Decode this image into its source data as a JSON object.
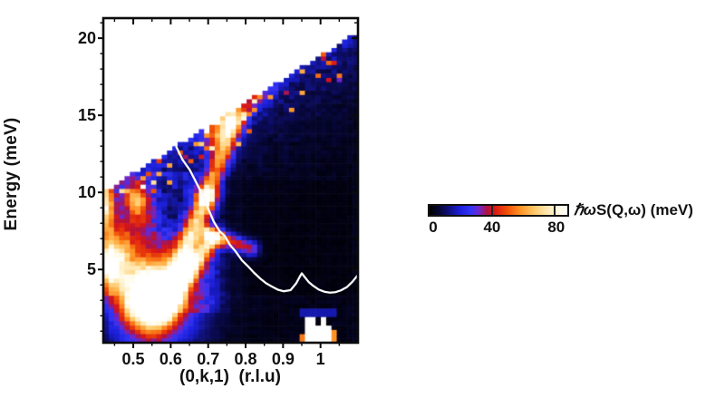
{
  "figure": {
    "background": "#ffffff"
  },
  "chart_data": {
    "type": "heatmap",
    "title": "",
    "xlabel": "(0,k,1)  (r.l.u)",
    "ylabel": "Energy (meV)",
    "xlim": [
      0.42,
      1.1
    ],
    "ylim": [
      0.25,
      21.3
    ],
    "x_axis": {
      "major_values": [
        0.5,
        0.6,
        0.7,
        0.8,
        0.9,
        1.0
      ],
      "major_labels": [
        "0.5",
        "0.6",
        "0.7",
        "0.8",
        "0.9",
        "1"
      ],
      "minor_step": 0.05
    },
    "y_axis": {
      "major_values": [
        5,
        10,
        15,
        20
      ],
      "major_labels": [
        "5",
        "10",
        "15",
        "20"
      ],
      "minor_step": 1
    },
    "grid": {
      "nk": 48,
      "ne": 76,
      "noise_seed": 12345
    },
    "kinematic_boundary": {
      "k0": 0.42,
      "E0": 10.0,
      "slope_meV_per_k": 15.3
    },
    "aspect_k_per_meV": 0.0415,
    "colormap_stops": [
      [
        0.0,
        "#000002"
      ],
      [
        0.06,
        "#05052a"
      ],
      [
        0.13,
        "#0e0e70"
      ],
      [
        0.22,
        "#1b1fd8"
      ],
      [
        0.3,
        "#3333f5"
      ],
      [
        0.36,
        "#7026c8"
      ],
      [
        0.42,
        "#b0123e"
      ],
      [
        0.47,
        "#d91616"
      ],
      [
        0.56,
        "#ef4d05"
      ],
      [
        0.66,
        "#ff9426"
      ],
      [
        0.76,
        "#ffc869"
      ],
      [
        0.86,
        "#ffe9b4"
      ],
      [
        0.95,
        "#fffbe8"
      ],
      [
        1.0,
        "#ffffff"
      ]
    ],
    "colorbar": {
      "min": 0,
      "max": 88,
      "tick_values": [
        0,
        40,
        80
      ],
      "tick_labels": [
        "0",
        "40",
        "80"
      ],
      "label_prefix": "ℏω",
      "label_main": "S(Q,ω)",
      "label_units": " (meV)"
    },
    "base_model": {
      "left_blue_value": 11,
      "left_dark_bottom": 5,
      "mid_right_fade_start": 0.7,
      "right_value": 3.0,
      "pocket": {
        "k1": 0.79,
        "k2": 1.09,
        "E1": 3.2,
        "E2": 10.8,
        "value": 1.8
      },
      "bottom_dark": {
        "k1": 0.57,
        "k2": 0.92,
        "Emax": 2.2,
        "value": 2.5
      },
      "boundary_band_amp": 14,
      "boundary_band_decay_meV": 2.6,
      "speckle_depth_meV": 2.4,
      "speckle_prob": 0.12,
      "speckle_amp": 22
    },
    "gaussian_features": [
      {
        "k": 0.545,
        "E": 3.1,
        "sk": 0.048,
        "sE": 1.35,
        "amp": 95
      },
      {
        "k": 0.565,
        "E": 3.6,
        "sk": 0.09,
        "sE": 2.6,
        "amp": 40
      },
      {
        "k": 0.46,
        "E": 5.9,
        "sk": 0.028,
        "sE": 1.25,
        "amp": 44
      },
      {
        "k": 0.437,
        "E": 4.7,
        "sk": 0.02,
        "sE": 0.95,
        "amp": 34
      },
      {
        "k": 0.425,
        "E": 9.6,
        "sk": 0.016,
        "sE": 1.0,
        "amp": 48
      },
      {
        "k": 0.51,
        "E": 9.6,
        "sk": 0.022,
        "sE": 0.7,
        "amp": 38
      },
      {
        "k": 0.73,
        "E": 14.2,
        "sk": 0.032,
        "sE": 1.2,
        "amp": 38
      },
      {
        "k": 0.52,
        "E": 8.4,
        "sk": 0.035,
        "sE": 1.1,
        "amp": 18
      },
      {
        "k": 0.585,
        "E": 8.6,
        "sk": 0.035,
        "sE": 1.3,
        "amp": -8
      }
    ],
    "branch_segments": [
      {
        "k1": 0.578,
        "E1": 2.4,
        "k2": 0.695,
        "E2": 9.7,
        "sigma": 0.019,
        "amp1": 70,
        "amp2": 52
      },
      {
        "k1": 0.695,
        "E1": 9.7,
        "k2": 0.768,
        "E2": 14.6,
        "sigma": 0.018,
        "amp1": 46,
        "amp2": 36
      },
      {
        "k1": 0.768,
        "E1": 14.6,
        "k2": 0.85,
        "E2": 16.9,
        "sigma": 0.02,
        "amp1": 30,
        "amp2": 20
      },
      {
        "k1": 0.602,
        "E1": 3.2,
        "k2": 0.714,
        "E2": 7.0,
        "sigma": 0.016,
        "amp1": 62,
        "amp2": 50
      },
      {
        "k1": 0.7,
        "E1": 7.3,
        "k2": 0.815,
        "E2": 6.35,
        "sigma": 0.015,
        "amp1": 48,
        "amp2": 34
      },
      {
        "k1": 0.43,
        "E1": 5.0,
        "k2": 0.43,
        "E2": 8.8,
        "sigma": 0.015,
        "amp1": 26,
        "amp2": 22
      }
    ],
    "bragg_rects": [
      {
        "k1": 0.955,
        "k2": 1.033,
        "E1": 0.25,
        "E2": 1.35,
        "v": 96
      },
      {
        "k1": 0.962,
        "k2": 0.985,
        "E1": 1.35,
        "E2": 1.95,
        "v": 90
      },
      {
        "k1": 0.998,
        "k2": 1.02,
        "E1": 1.35,
        "E2": 1.8,
        "v": 86
      },
      {
        "k1": 1.033,
        "k2": 1.048,
        "E1": 0.3,
        "E2": 1.2,
        "v": 58
      },
      {
        "k1": 0.945,
        "k2": 0.955,
        "E1": 0.25,
        "E2": 0.9,
        "v": 55
      },
      {
        "k1": 0.95,
        "k2": 1.04,
        "E1": 1.95,
        "E2": 2.6,
        "v": 16
      }
    ],
    "dispersion_curve": {
      "color": "#fafafa",
      "width": 2.3,
      "points": [
        [
          0.615,
          12.95
        ],
        [
          0.632,
          12.1
        ],
        [
          0.651,
          11.45
        ],
        [
          0.67,
          10.55
        ],
        [
          0.688,
          9.7
        ],
        [
          0.7,
          8.95
        ],
        [
          0.715,
          8.1
        ],
        [
          0.73,
          7.5
        ],
        [
          0.744,
          7.18
        ],
        [
          0.758,
          6.6
        ],
        [
          0.773,
          6.18
        ],
        [
          0.79,
          5.6
        ],
        [
          0.805,
          5.24
        ],
        [
          0.822,
          4.8
        ],
        [
          0.839,
          4.41
        ],
        [
          0.855,
          4.1
        ],
        [
          0.871,
          3.88
        ],
        [
          0.887,
          3.68
        ],
        [
          0.902,
          3.59
        ],
        [
          0.92,
          3.66
        ],
        [
          0.935,
          4.1
        ],
        [
          0.945,
          4.55
        ],
        [
          0.95,
          4.75
        ],
        [
          0.958,
          4.5
        ],
        [
          0.968,
          4.2
        ],
        [
          0.98,
          3.95
        ],
        [
          0.995,
          3.7
        ],
        [
          1.01,
          3.56
        ],
        [
          1.025,
          3.5
        ],
        [
          1.04,
          3.53
        ],
        [
          1.055,
          3.65
        ],
        [
          1.07,
          3.85
        ],
        [
          1.085,
          4.2
        ],
        [
          1.1,
          4.65
        ]
      ]
    }
  }
}
